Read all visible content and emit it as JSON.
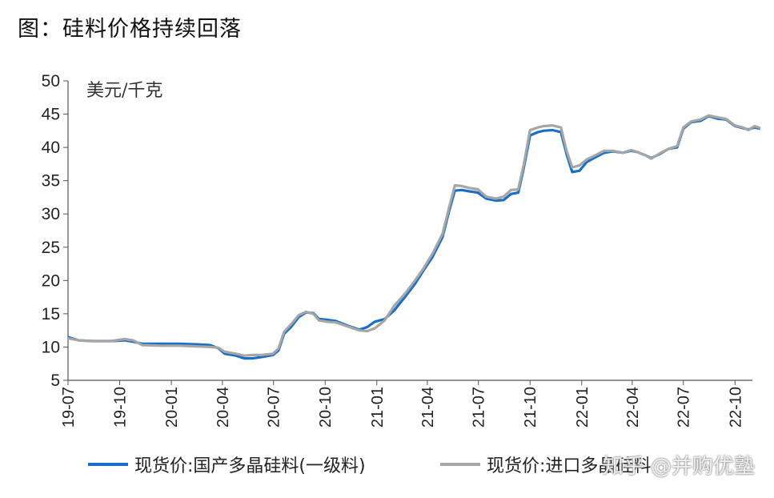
{
  "header": {
    "title": "图：硅料价格持续回落"
  },
  "watermark": {
    "text": "知乎 @并购优塾"
  },
  "chart_data": {
    "type": "line",
    "title": "图：硅料价格持续回落",
    "ylabel": "美元/千克",
    "ylim": [
      5,
      50
    ],
    "yticks": [
      5,
      10,
      15,
      20,
      25,
      30,
      35,
      40,
      45,
      50
    ],
    "xlim": [
      "2019-07",
      "2022-11"
    ],
    "xticks": [
      "19-07",
      "19-10",
      "20-01",
      "20-04",
      "20-07",
      "20-10",
      "21-01",
      "21-04",
      "21-07",
      "21-10",
      "22-01",
      "22-04",
      "22-07",
      "22-10"
    ],
    "grid": false,
    "legend_position": "bottom",
    "series": [
      {
        "name": "现货价:国产多晶硅料(一级料)",
        "color": "#1a6fc4",
        "points": [
          [
            "2019-07-01",
            11.5
          ],
          [
            "2019-07-20",
            11.0
          ],
          [
            "2019-08-15",
            10.9
          ],
          [
            "2019-09-15",
            10.9
          ],
          [
            "2019-10-10",
            11.0
          ],
          [
            "2019-10-25",
            10.8
          ],
          [
            "2019-11-10",
            10.5
          ],
          [
            "2019-12-15",
            10.5
          ],
          [
            "2020-01-15",
            10.5
          ],
          [
            "2020-02-15",
            10.4
          ],
          [
            "2020-03-10",
            10.3
          ],
          [
            "2020-03-25",
            9.8
          ],
          [
            "2020-04-05",
            9.0
          ],
          [
            "2020-04-25",
            8.7
          ],
          [
            "2020-05-10",
            8.3
          ],
          [
            "2020-05-25",
            8.3
          ],
          [
            "2020-06-10",
            8.5
          ],
          [
            "2020-06-30",
            8.8
          ],
          [
            "2020-07-10",
            9.5
          ],
          [
            "2020-07-20",
            12.0
          ],
          [
            "2020-08-01",
            13.0
          ],
          [
            "2020-08-15",
            14.5
          ],
          [
            "2020-08-28",
            15.2
          ],
          [
            "2020-09-10",
            15.1
          ],
          [
            "2020-09-20",
            14.2
          ],
          [
            "2020-10-05",
            14.1
          ],
          [
            "2020-10-20",
            13.9
          ],
          [
            "2020-11-10",
            13.2
          ],
          [
            "2020-12-01",
            12.6
          ],
          [
            "2020-12-15",
            13.0
          ],
          [
            "2020-12-28",
            13.8
          ],
          [
            "2021-01-15",
            14.2
          ],
          [
            "2021-02-01",
            15.5
          ],
          [
            "2021-02-20",
            17.5
          ],
          [
            "2021-03-10",
            19.5
          ],
          [
            "2021-03-25",
            21.5
          ],
          [
            "2021-04-10",
            23.5
          ],
          [
            "2021-04-28",
            26.5
          ],
          [
            "2021-05-10",
            30.5
          ],
          [
            "2021-05-20",
            33.5
          ],
          [
            "2021-06-01",
            33.6
          ],
          [
            "2021-06-15",
            33.4
          ],
          [
            "2021-06-30",
            33.2
          ],
          [
            "2021-07-15",
            32.3
          ],
          [
            "2021-08-01",
            32.0
          ],
          [
            "2021-08-15",
            32.1
          ],
          [
            "2021-08-28",
            33.0
          ],
          [
            "2021-09-10",
            33.2
          ],
          [
            "2021-09-20",
            37.0
          ],
          [
            "2021-10-01",
            41.8
          ],
          [
            "2021-10-15",
            42.3
          ],
          [
            "2021-10-25",
            42.5
          ],
          [
            "2021-11-10",
            42.6
          ],
          [
            "2021-11-25",
            42.3
          ],
          [
            "2021-12-05",
            39.0
          ],
          [
            "2021-12-15",
            36.3
          ],
          [
            "2021-12-28",
            36.5
          ],
          [
            "2022-01-10",
            37.8
          ],
          [
            "2022-01-25",
            38.5
          ],
          [
            "2022-02-10",
            39.2
          ],
          [
            "2022-02-25",
            39.4
          ],
          [
            "2022-03-15",
            39.2
          ],
          [
            "2022-03-30",
            39.5
          ],
          [
            "2022-04-10",
            39.3
          ],
          [
            "2022-04-25",
            38.8
          ],
          [
            "2022-05-05",
            38.4
          ],
          [
            "2022-05-20",
            39.0
          ],
          [
            "2022-06-05",
            39.8
          ],
          [
            "2022-06-20",
            40.0
          ],
          [
            "2022-07-01",
            42.8
          ],
          [
            "2022-07-15",
            43.8
          ],
          [
            "2022-08-01",
            44.0
          ],
          [
            "2022-08-15",
            44.7
          ],
          [
            "2022-09-01",
            44.3
          ],
          [
            "2022-09-15",
            44.2
          ],
          [
            "2022-10-01",
            43.2
          ],
          [
            "2022-10-15",
            42.9
          ],
          [
            "2022-10-25",
            42.7
          ],
          [
            "2022-11-05",
            43.0
          ],
          [
            "2022-11-15",
            42.8
          ]
        ]
      },
      {
        "name": "现货价:进口多晶硅料",
        "color": "#a6a6a6",
        "points": [
          [
            "2019-07-01",
            11.3
          ],
          [
            "2019-07-20",
            11.0
          ],
          [
            "2019-08-15",
            10.9
          ],
          [
            "2019-09-15",
            10.9
          ],
          [
            "2019-10-10",
            11.2
          ],
          [
            "2019-10-25",
            11.0
          ],
          [
            "2019-11-10",
            10.3
          ],
          [
            "2019-12-15",
            10.2
          ],
          [
            "2020-01-15",
            10.2
          ],
          [
            "2020-02-15",
            10.1
          ],
          [
            "2020-03-10",
            10.0
          ],
          [
            "2020-03-25",
            9.9
          ],
          [
            "2020-04-05",
            9.3
          ],
          [
            "2020-04-25",
            9.0
          ],
          [
            "2020-05-10",
            8.7
          ],
          [
            "2020-05-25",
            8.8
          ],
          [
            "2020-06-10",
            8.8
          ],
          [
            "2020-06-30",
            9.0
          ],
          [
            "2020-07-10",
            9.8
          ],
          [
            "2020-07-20",
            12.3
          ],
          [
            "2020-08-01",
            13.4
          ],
          [
            "2020-08-15",
            14.8
          ],
          [
            "2020-08-28",
            15.3
          ],
          [
            "2020-09-10",
            15.0
          ],
          [
            "2020-09-20",
            14.0
          ],
          [
            "2020-10-05",
            13.8
          ],
          [
            "2020-10-20",
            13.7
          ],
          [
            "2020-11-10",
            13.1
          ],
          [
            "2020-12-01",
            12.5
          ],
          [
            "2020-12-15",
            12.4
          ],
          [
            "2020-12-28",
            12.8
          ],
          [
            "2021-01-15",
            14.0
          ],
          [
            "2021-02-01",
            16.2
          ],
          [
            "2021-02-20",
            18.0
          ],
          [
            "2021-03-10",
            20.0
          ],
          [
            "2021-03-25",
            21.8
          ],
          [
            "2021-04-10",
            24.0
          ],
          [
            "2021-04-28",
            27.0
          ],
          [
            "2021-05-10",
            31.0
          ],
          [
            "2021-05-20",
            34.3
          ],
          [
            "2021-06-01",
            34.2
          ],
          [
            "2021-06-15",
            33.9
          ],
          [
            "2021-06-30",
            33.7
          ],
          [
            "2021-07-15",
            32.6
          ],
          [
            "2021-08-01",
            32.3
          ],
          [
            "2021-08-15",
            32.6
          ],
          [
            "2021-08-28",
            33.6
          ],
          [
            "2021-09-10",
            33.7
          ],
          [
            "2021-09-20",
            37.5
          ],
          [
            "2021-10-01",
            42.6
          ],
          [
            "2021-10-15",
            43.0
          ],
          [
            "2021-10-25",
            43.2
          ],
          [
            "2021-11-10",
            43.3
          ],
          [
            "2021-11-25",
            43.0
          ],
          [
            "2021-12-05",
            39.5
          ],
          [
            "2021-12-15",
            37.0
          ],
          [
            "2021-12-28",
            37.3
          ],
          [
            "2022-01-10",
            38.2
          ],
          [
            "2022-01-25",
            38.8
          ],
          [
            "2022-02-10",
            39.5
          ],
          [
            "2022-02-25",
            39.5
          ],
          [
            "2022-03-15",
            39.2
          ],
          [
            "2022-03-30",
            39.6
          ],
          [
            "2022-04-10",
            39.3
          ],
          [
            "2022-04-25",
            38.8
          ],
          [
            "2022-05-05",
            38.3
          ],
          [
            "2022-05-20",
            39.1
          ],
          [
            "2022-06-05",
            39.8
          ],
          [
            "2022-06-20",
            40.2
          ],
          [
            "2022-07-01",
            43.0
          ],
          [
            "2022-07-15",
            43.9
          ],
          [
            "2022-08-01",
            44.2
          ],
          [
            "2022-08-15",
            44.8
          ],
          [
            "2022-09-01",
            44.5
          ],
          [
            "2022-09-15",
            44.3
          ],
          [
            "2022-10-01",
            43.3
          ],
          [
            "2022-10-15",
            43.0
          ],
          [
            "2022-10-25",
            42.6
          ],
          [
            "2022-11-05",
            43.2
          ],
          [
            "2022-11-15",
            42.9
          ]
        ]
      }
    ]
  }
}
